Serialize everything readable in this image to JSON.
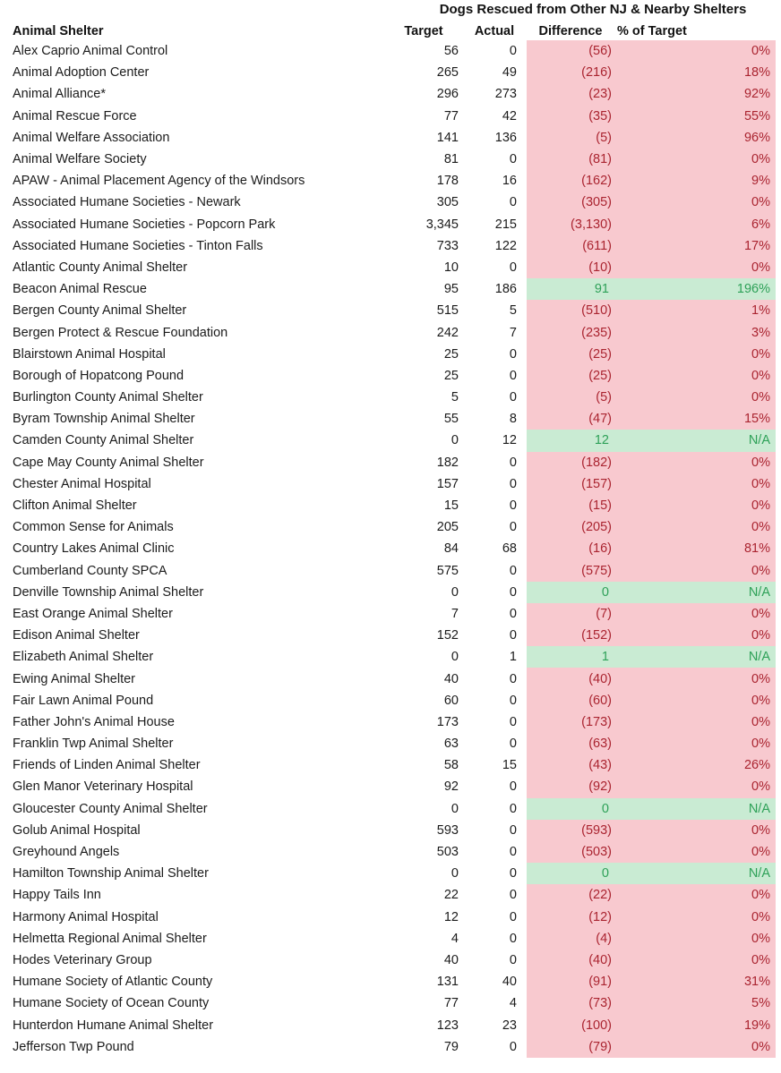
{
  "colors": {
    "negative_fill": "#F8C9CF",
    "negative_text": "#AA2430",
    "positive_fill": "#C9EBD3",
    "positive_text": "#2EA158"
  },
  "chart_data": {
    "type": "table",
    "title": "Dogs Rescued from Other NJ & Nearby Shelters",
    "columns": [
      "Animal Shelter",
      "Target",
      "Actual",
      "Difference",
      "% of Target"
    ],
    "rows": [
      {
        "name": "Alex Caprio Animal Control",
        "target": "56",
        "actual": "0",
        "difference": "(56)",
        "pct": "0%",
        "status": "negative"
      },
      {
        "name": "Animal Adoption Center",
        "target": "265",
        "actual": "49",
        "difference": "(216)",
        "pct": "18%",
        "status": "negative"
      },
      {
        "name": "Animal Alliance*",
        "target": "296",
        "actual": "273",
        "difference": "(23)",
        "pct": "92%",
        "status": "negative"
      },
      {
        "name": "Animal Rescue Force",
        "target": "77",
        "actual": "42",
        "difference": "(35)",
        "pct": "55%",
        "status": "negative"
      },
      {
        "name": "Animal Welfare Association",
        "target": "141",
        "actual": "136",
        "difference": "(5)",
        "pct": "96%",
        "status": "negative"
      },
      {
        "name": "Animal Welfare Society",
        "target": "81",
        "actual": "0",
        "difference": "(81)",
        "pct": "0%",
        "status": "negative"
      },
      {
        "name": "APAW - Animal Placement Agency of the Windsors",
        "target": "178",
        "actual": "16",
        "difference": "(162)",
        "pct": "9%",
        "status": "negative"
      },
      {
        "name": "Associated Humane Societies - Newark",
        "target": "305",
        "actual": "0",
        "difference": "(305)",
        "pct": "0%",
        "status": "negative"
      },
      {
        "name": "Associated Humane Societies - Popcorn Park",
        "target": "3,345",
        "actual": "215",
        "difference": "(3,130)",
        "pct": "6%",
        "status": "negative"
      },
      {
        "name": "Associated Humane Societies - Tinton Falls",
        "target": "733",
        "actual": "122",
        "difference": "(611)",
        "pct": "17%",
        "status": "negative"
      },
      {
        "name": "Atlantic County Animal Shelter",
        "target": "10",
        "actual": "0",
        "difference": "(10)",
        "pct": "0%",
        "status": "negative"
      },
      {
        "name": "Beacon Animal Rescue",
        "target": "95",
        "actual": "186",
        "difference": "91",
        "pct": "196%",
        "status": "positive"
      },
      {
        "name": "Bergen County Animal Shelter",
        "target": "515",
        "actual": "5",
        "difference": "(510)",
        "pct": "1%",
        "status": "negative"
      },
      {
        "name": "Bergen Protect & Rescue Foundation",
        "target": "242",
        "actual": "7",
        "difference": "(235)",
        "pct": "3%",
        "status": "negative"
      },
      {
        "name": "Blairstown Animal Hospital",
        "target": "25",
        "actual": "0",
        "difference": "(25)",
        "pct": "0%",
        "status": "negative"
      },
      {
        "name": "Borough of Hopatcong Pound",
        "target": "25",
        "actual": "0",
        "difference": "(25)",
        "pct": "0%",
        "status": "negative"
      },
      {
        "name": "Burlington County Animal Shelter",
        "target": "5",
        "actual": "0",
        "difference": "(5)",
        "pct": "0%",
        "status": "negative"
      },
      {
        "name": "Byram Township Animal Shelter",
        "target": "55",
        "actual": "8",
        "difference": "(47)",
        "pct": "15%",
        "status": "negative"
      },
      {
        "name": "Camden County Animal Shelter",
        "target": "0",
        "actual": "12",
        "difference": "12",
        "pct": "N/A",
        "status": "positive"
      },
      {
        "name": "Cape May County Animal Shelter",
        "target": "182",
        "actual": "0",
        "difference": "(182)",
        "pct": "0%",
        "status": "negative"
      },
      {
        "name": "Chester Animal Hospital",
        "target": "157",
        "actual": "0",
        "difference": "(157)",
        "pct": "0%",
        "status": "negative"
      },
      {
        "name": "Clifton Animal Shelter",
        "target": "15",
        "actual": "0",
        "difference": "(15)",
        "pct": "0%",
        "status": "negative"
      },
      {
        "name": "Common Sense for Animals",
        "target": "205",
        "actual": "0",
        "difference": "(205)",
        "pct": "0%",
        "status": "negative"
      },
      {
        "name": "Country Lakes Animal Clinic",
        "target": "84",
        "actual": "68",
        "difference": "(16)",
        "pct": "81%",
        "status": "negative"
      },
      {
        "name": "Cumberland County SPCA",
        "target": "575",
        "actual": "0",
        "difference": "(575)",
        "pct": "0%",
        "status": "negative"
      },
      {
        "name": "Denville Township Animal Shelter",
        "target": "0",
        "actual": "0",
        "difference": "0",
        "pct": "N/A",
        "status": "positive"
      },
      {
        "name": "East Orange Animal Shelter",
        "target": "7",
        "actual": "0",
        "difference": "(7)",
        "pct": "0%",
        "status": "negative"
      },
      {
        "name": "Edison Animal Shelter",
        "target": "152",
        "actual": "0",
        "difference": "(152)",
        "pct": "0%",
        "status": "negative"
      },
      {
        "name": "Elizabeth Animal Shelter",
        "target": "0",
        "actual": "1",
        "difference": "1",
        "pct": "N/A",
        "status": "positive"
      },
      {
        "name": "Ewing Animal Shelter",
        "target": "40",
        "actual": "0",
        "difference": "(40)",
        "pct": "0%",
        "status": "negative"
      },
      {
        "name": "Fair Lawn Animal Pound",
        "target": "60",
        "actual": "0",
        "difference": "(60)",
        "pct": "0%",
        "status": "negative"
      },
      {
        "name": "Father John's Animal House",
        "target": "173",
        "actual": "0",
        "difference": "(173)",
        "pct": "0%",
        "status": "negative"
      },
      {
        "name": "Franklin Twp Animal Shelter",
        "target": "63",
        "actual": "0",
        "difference": "(63)",
        "pct": "0%",
        "status": "negative"
      },
      {
        "name": "Friends of Linden Animal Shelter",
        "target": "58",
        "actual": "15",
        "difference": "(43)",
        "pct": "26%",
        "status": "negative"
      },
      {
        "name": "Glen Manor Veterinary Hospital",
        "target": "92",
        "actual": "0",
        "difference": "(92)",
        "pct": "0%",
        "status": "negative"
      },
      {
        "name": "Gloucester County Animal Shelter",
        "target": "0",
        "actual": "0",
        "difference": "0",
        "pct": "N/A",
        "status": "positive"
      },
      {
        "name": "Golub Animal Hospital",
        "target": "593",
        "actual": "0",
        "difference": "(593)",
        "pct": "0%",
        "status": "negative"
      },
      {
        "name": "Greyhound Angels",
        "target": "503",
        "actual": "0",
        "difference": "(503)",
        "pct": "0%",
        "status": "negative"
      },
      {
        "name": "Hamilton Township Animal Shelter",
        "target": "0",
        "actual": "0",
        "difference": "0",
        "pct": "N/A",
        "status": "positive"
      },
      {
        "name": "Happy Tails Inn",
        "target": "22",
        "actual": "0",
        "difference": "(22)",
        "pct": "0%",
        "status": "negative"
      },
      {
        "name": "Harmony Animal Hospital",
        "target": "12",
        "actual": "0",
        "difference": "(12)",
        "pct": "0%",
        "status": "negative"
      },
      {
        "name": "Helmetta Regional Animal Shelter",
        "target": "4",
        "actual": "0",
        "difference": "(4)",
        "pct": "0%",
        "status": "negative"
      },
      {
        "name": "Hodes Veterinary Group",
        "target": "40",
        "actual": "0",
        "difference": "(40)",
        "pct": "0%",
        "status": "negative"
      },
      {
        "name": "Humane Society of Atlantic County",
        "target": "131",
        "actual": "40",
        "difference": "(91)",
        "pct": "31%",
        "status": "negative"
      },
      {
        "name": "Humane Society of Ocean County",
        "target": "77",
        "actual": "4",
        "difference": "(73)",
        "pct": "5%",
        "status": "negative"
      },
      {
        "name": "Hunterdon Humane Animal Shelter",
        "target": "123",
        "actual": "23",
        "difference": "(100)",
        "pct": "19%",
        "status": "negative"
      },
      {
        "name": "Jefferson Twp Pound",
        "target": "79",
        "actual": "0",
        "difference": "(79)",
        "pct": "0%",
        "status": "negative"
      }
    ]
  }
}
